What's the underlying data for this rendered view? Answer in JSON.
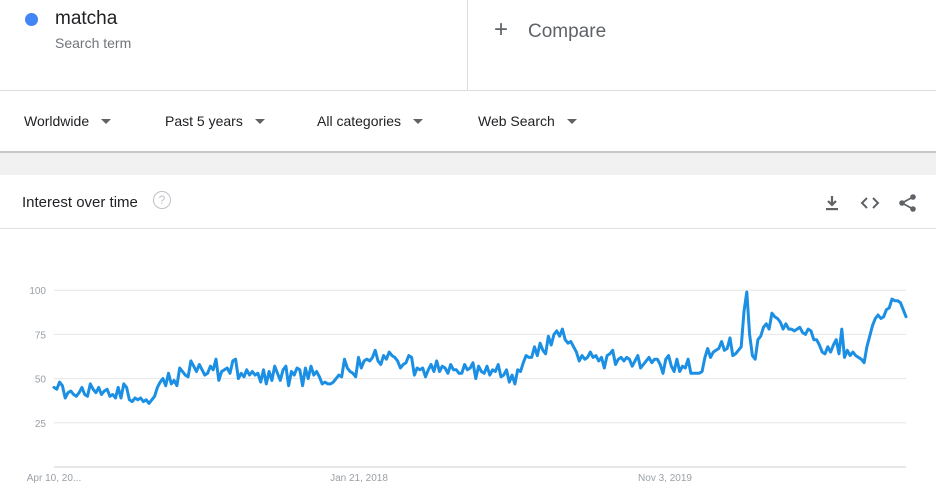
{
  "search_term": {
    "name": "matcha",
    "subtitle": "Search term",
    "color": "#4285f4"
  },
  "compare": {
    "label": "Compare",
    "plus": "+"
  },
  "filters": [
    {
      "label": "Worldwide"
    },
    {
      "label": "Past 5 years"
    },
    {
      "label": "All categories"
    },
    {
      "label": "Web Search"
    }
  ],
  "card": {
    "title": "Interest over time",
    "help": "?",
    "actions": [
      "download-icon",
      "embed-icon",
      "share-icon"
    ]
  },
  "chart_data": {
    "type": "line",
    "title": "",
    "xlabel": "",
    "ylabel": "",
    "x_tick_labels": [
      "Apr 10, 20...",
      "Jan 21, 2018",
      "Nov 3, 2019"
    ],
    "y_ticks": [
      100,
      75,
      50,
      25
    ],
    "ylim": [
      0,
      100
    ],
    "grid": true,
    "legend": "none",
    "series": [
      {
        "name": "matcha",
        "color": "#1a8fe3",
        "values": [
          45,
          44,
          48,
          46,
          39,
          42,
          43,
          41,
          40,
          42,
          45,
          41,
          40,
          47,
          44,
          42,
          45,
          41,
          43,
          44,
          40,
          41,
          39,
          45,
          39,
          47,
          45,
          38,
          37,
          39,
          38,
          39,
          37,
          38,
          36,
          38,
          40,
          45,
          48,
          50,
          46,
          53,
          47,
          49,
          46,
          56,
          54,
          52,
          51,
          60,
          57,
          54,
          58,
          55,
          52,
          53,
          57,
          55,
          61,
          49,
          54,
          55,
          56,
          53,
          60,
          61,
          50,
          53,
          51,
          55,
          52,
          54,
          52,
          53,
          48,
          55,
          47,
          54,
          49,
          57,
          53,
          49,
          55,
          57,
          46,
          54,
          52,
          56,
          55,
          46,
          56,
          50,
          57,
          52,
          54,
          51,
          47,
          48,
          47,
          47,
          48,
          50,
          52,
          51,
          61,
          56,
          54,
          53,
          51,
          62,
          56,
          60,
          61,
          60,
          62,
          66,
          60,
          58,
          63,
          61,
          65,
          63,
          62,
          60,
          56,
          58,
          59,
          63,
          62,
          52,
          56,
          55,
          56,
          51,
          55,
          58,
          54,
          60,
          54,
          57,
          56,
          53,
          58,
          55,
          55,
          53,
          53,
          58,
          55,
          56,
          59,
          50,
          57,
          54,
          53,
          57,
          52,
          55,
          54,
          58,
          51,
          52,
          55,
          48,
          52,
          47,
          55,
          54,
          59,
          63,
          62,
          62,
          68,
          63,
          70,
          66,
          64,
          74,
          69,
          75,
          77,
          74,
          78,
          72,
          70,
          71,
          68,
          65,
          60,
          63,
          61,
          62,
          65,
          62,
          63,
          60,
          62,
          56,
          63,
          64,
          66,
          58,
          61,
          62,
          60,
          62,
          61,
          57,
          60,
          63,
          56,
          58,
          60,
          62,
          59,
          61,
          61,
          58,
          53,
          61,
          63,
          57,
          54,
          61,
          54,
          57,
          56,
          61,
          53,
          53,
          53,
          53,
          54,
          62,
          67,
          62,
          65,
          66,
          67,
          71,
          66,
          67,
          73,
          63,
          64,
          66,
          68,
          88,
          99,
          75,
          63,
          61,
          72,
          74,
          79,
          81,
          78,
          87,
          85,
          84,
          82,
          78,
          81,
          78,
          78,
          77,
          78,
          79,
          76,
          75,
          78,
          77,
          72,
          72,
          69,
          65,
          64,
          68,
          65,
          69,
          72,
          64,
          78,
          62,
          66,
          63,
          65,
          63,
          62,
          61,
          59,
          68,
          74,
          80,
          84,
          86,
          84,
          85,
          89,
          90,
          95,
          94,
          94,
          93,
          89,
          85
        ]
      }
    ]
  }
}
